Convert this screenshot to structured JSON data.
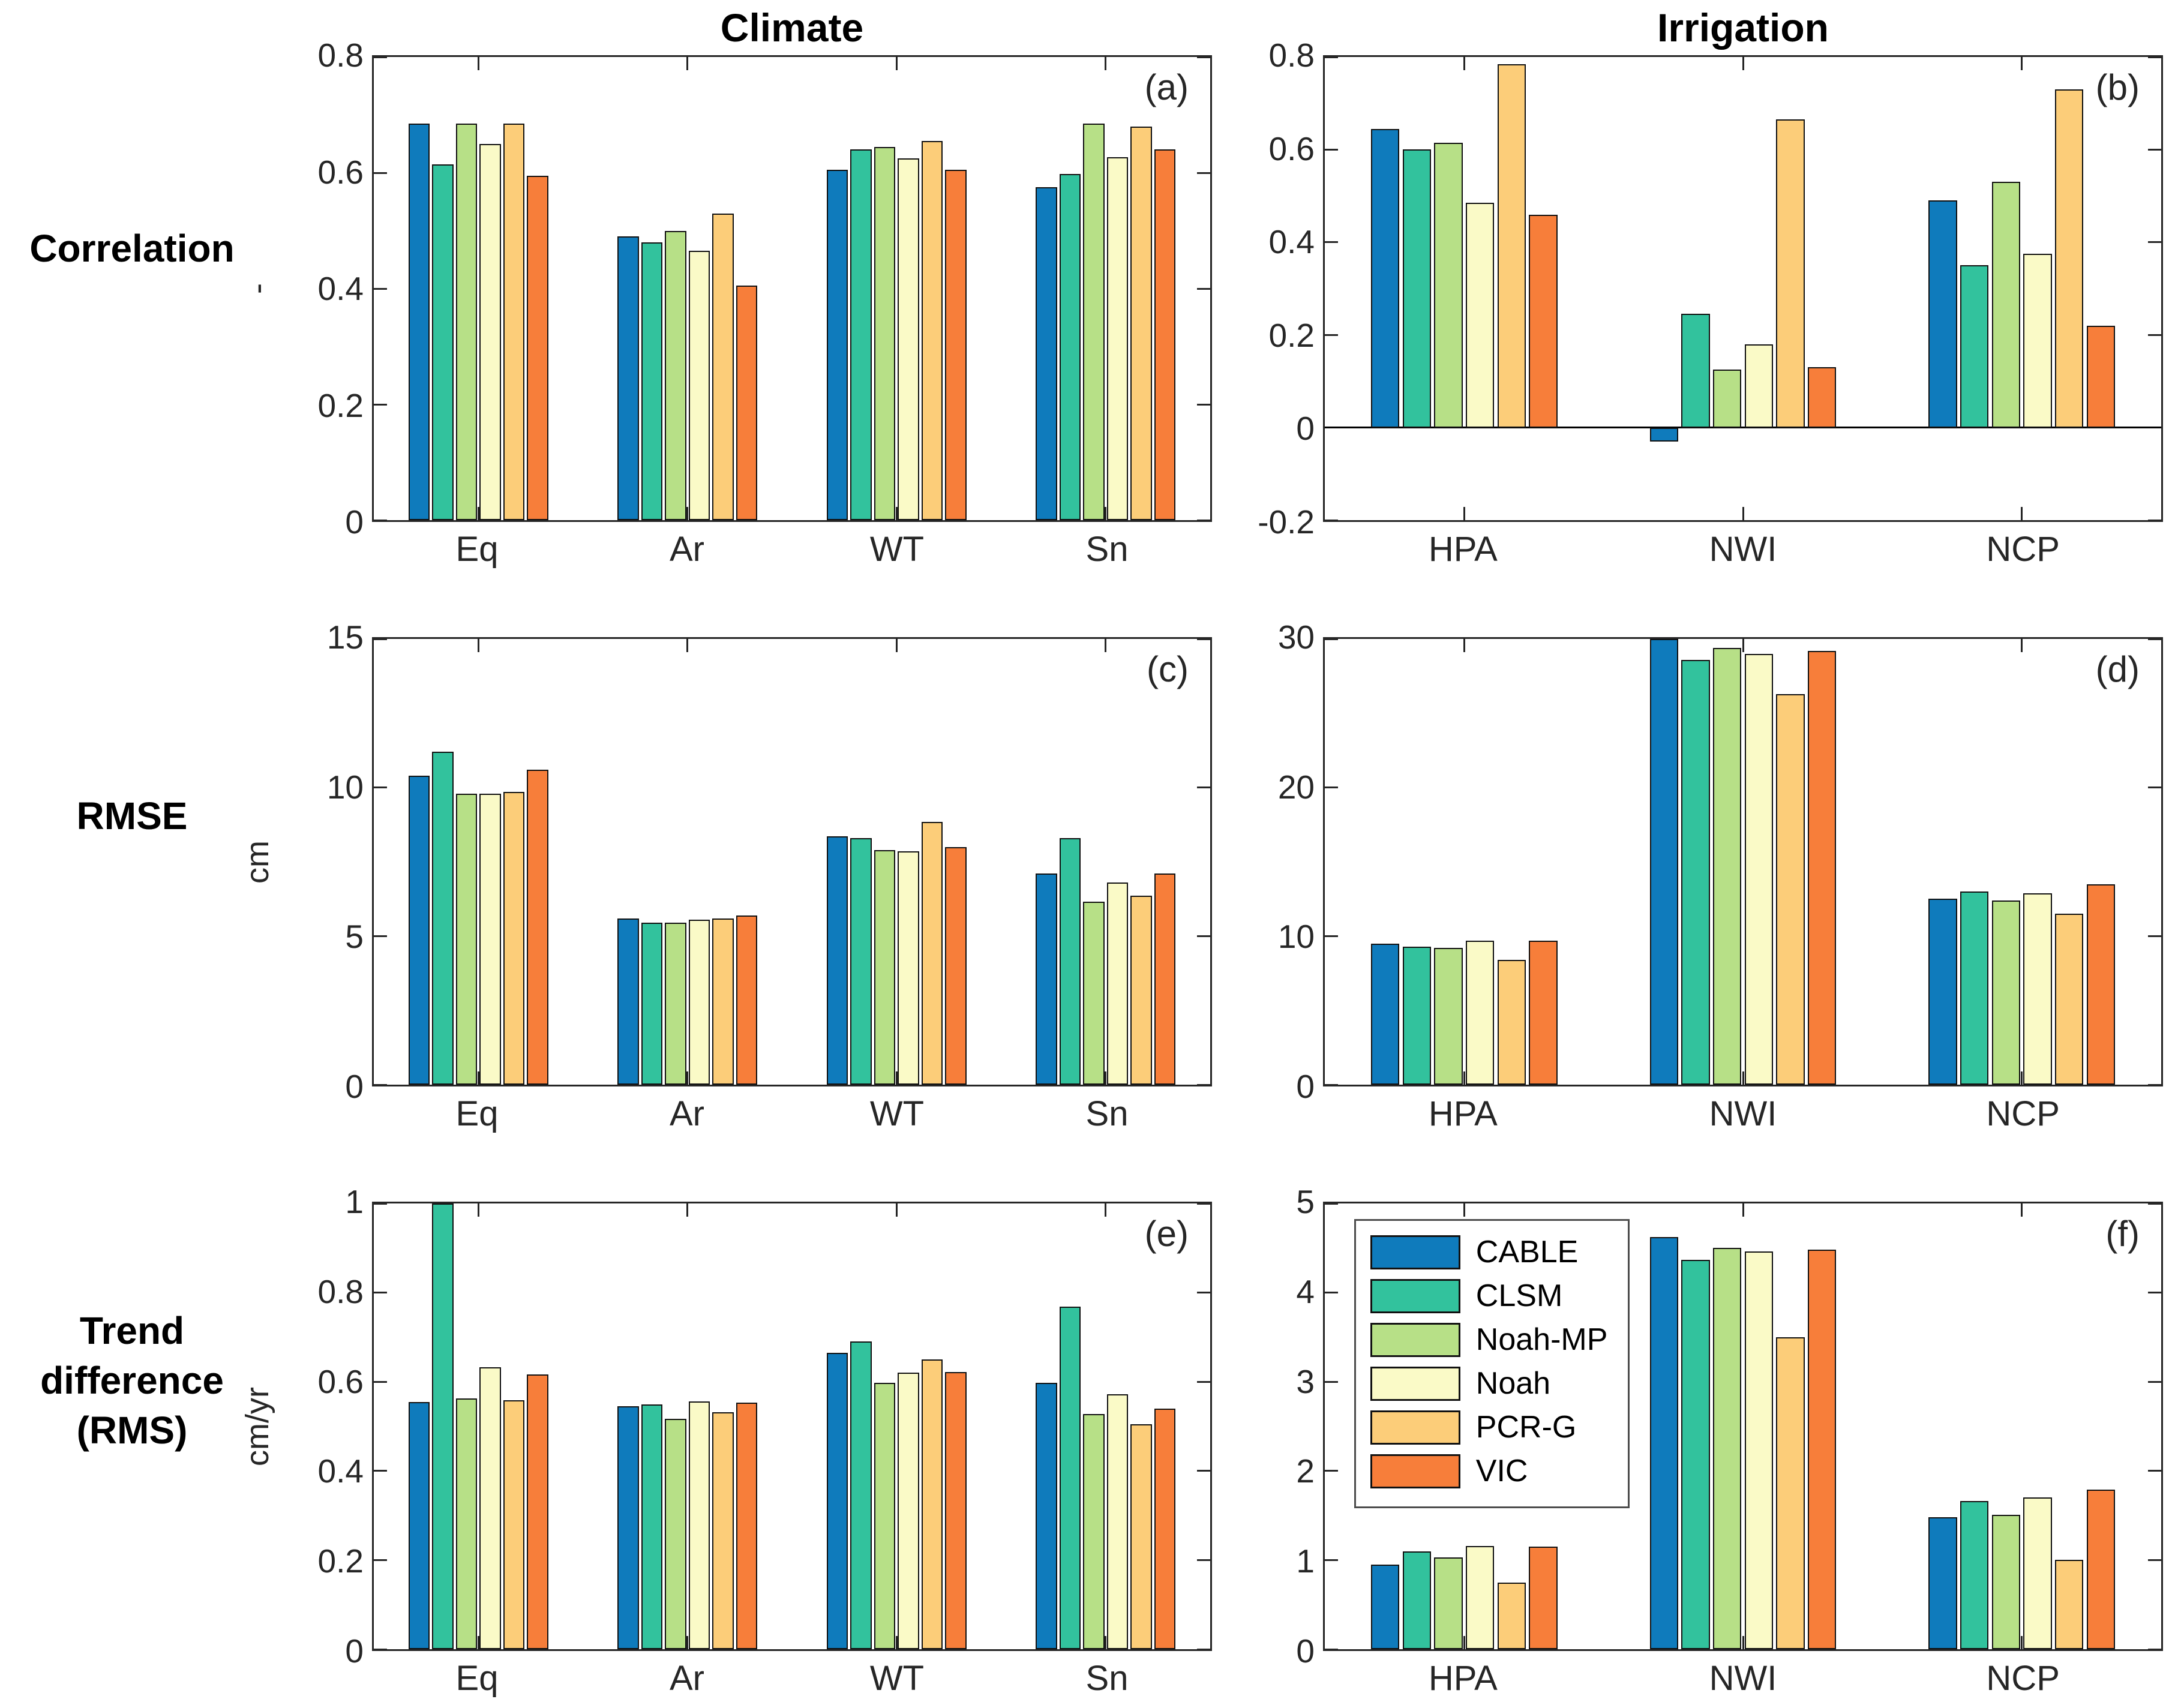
{
  "figure": {
    "row_labels": [
      "Correlation",
      "RMSE",
      "Trend\ndifference\n(RMS)"
    ]
  },
  "series": [
    {
      "name": "CABLE",
      "color": "#0F7BBC"
    },
    {
      "name": "CLSM",
      "color": "#32C29D"
    },
    {
      "name": "Noah-MP",
      "color": "#B7E087"
    },
    {
      "name": "Noah",
      "color": "#FAFAC7"
    },
    {
      "name": "PCR-G",
      "color": "#FCCD79"
    },
    {
      "name": "VIC",
      "color": "#F77E3A"
    }
  ],
  "chart_data": [
    {
      "type": "bar",
      "id": "a",
      "letter": "(a)",
      "title": "Climate",
      "ylabel": "-",
      "ylim": [
        0,
        0.8
      ],
      "yticks": [
        0,
        0.2,
        0.4,
        0.6,
        0.8
      ],
      "categories": [
        "Eq",
        "Ar",
        "WT",
        "Sn"
      ],
      "series": [
        {
          "name": "CABLE",
          "values": [
            0.685,
            0.49,
            0.605,
            0.575
          ]
        },
        {
          "name": "CLSM",
          "values": [
            0.615,
            0.48,
            0.64,
            0.598
          ]
        },
        {
          "name": "Noah-MP",
          "values": [
            0.685,
            0.5,
            0.645,
            0.685
          ]
        },
        {
          "name": "Noah",
          "values": [
            0.65,
            0.465,
            0.625,
            0.627
          ]
        },
        {
          "name": "PCR-G",
          "values": [
            0.685,
            0.53,
            0.655,
            0.68
          ]
        },
        {
          "name": "VIC",
          "values": [
            0.595,
            0.405,
            0.605,
            0.64
          ]
        }
      ]
    },
    {
      "type": "bar",
      "id": "b",
      "letter": "(b)",
      "title": "Irrigation",
      "ylabel": "",
      "ylim": [
        -0.2,
        0.8
      ],
      "yticks": [
        -0.2,
        0,
        0.2,
        0.4,
        0.6,
        0.8
      ],
      "categories": [
        "HPA",
        "NWI",
        "NCP"
      ],
      "series": [
        {
          "name": "CABLE",
          "values": [
            0.645,
            -0.03,
            0.49
          ]
        },
        {
          "name": "CLSM",
          "values": [
            0.6,
            0.245,
            0.35
          ]
        },
        {
          "name": "Noah-MP",
          "values": [
            0.615,
            0.125,
            0.53
          ]
        },
        {
          "name": "Noah",
          "values": [
            0.485,
            0.18,
            0.375
          ]
        },
        {
          "name": "PCR-G",
          "values": [
            0.785,
            0.665,
            0.73
          ]
        },
        {
          "name": "VIC",
          "values": [
            0.46,
            0.13,
            0.22
          ]
        }
      ]
    },
    {
      "type": "bar",
      "id": "c",
      "letter": "(c)",
      "title": "",
      "ylabel": "cm",
      "ylim": [
        0,
        15
      ],
      "yticks": [
        0,
        5,
        10,
        15
      ],
      "categories": [
        "Eq",
        "Ar",
        "WT",
        "Sn"
      ],
      "series": [
        {
          "name": "CABLE",
          "values": [
            10.4,
            5.6,
            8.35,
            7.1
          ]
        },
        {
          "name": "CLSM",
          "values": [
            11.2,
            5.45,
            8.3,
            8.3
          ]
        },
        {
          "name": "Noah-MP",
          "values": [
            9.8,
            5.45,
            7.9,
            6.15
          ]
        },
        {
          "name": "Noah",
          "values": [
            9.8,
            5.55,
            7.85,
            6.8
          ]
        },
        {
          "name": "PCR-G",
          "values": [
            9.85,
            5.6,
            8.85,
            6.35
          ]
        },
        {
          "name": "VIC",
          "values": [
            10.6,
            5.7,
            8.0,
            7.1
          ]
        }
      ]
    },
    {
      "type": "bar",
      "id": "d",
      "letter": "(d)",
      "title": "",
      "ylabel": "",
      "ylim": [
        0,
        30
      ],
      "yticks": [
        0,
        10,
        20,
        30
      ],
      "categories": [
        "HPA",
        "NWI",
        "NCP"
      ],
      "series": [
        {
          "name": "CABLE",
          "values": [
            9.5,
            30.0,
            12.5
          ]
        },
        {
          "name": "CLSM",
          "values": [
            9.3,
            28.6,
            13.0
          ]
        },
        {
          "name": "Noah-MP",
          "values": [
            9.2,
            29.4,
            12.4
          ]
        },
        {
          "name": "Noah",
          "values": [
            9.7,
            29.0,
            12.9
          ]
        },
        {
          "name": "PCR-G",
          "values": [
            8.4,
            26.3,
            11.5
          ]
        },
        {
          "name": "VIC",
          "values": [
            9.7,
            29.2,
            13.5
          ]
        }
      ]
    },
    {
      "type": "bar",
      "id": "e",
      "letter": "(e)",
      "title": "",
      "ylabel": "cm/yr",
      "ylim": [
        0,
        1
      ],
      "yticks": [
        0,
        0.2,
        0.4,
        0.6,
        0.8,
        1
      ],
      "categories": [
        "Eq",
        "Ar",
        "WT",
        "Sn"
      ],
      "series": [
        {
          "name": "CABLE",
          "values": [
            0.555,
            0.545,
            0.665,
            0.598
          ]
        },
        {
          "name": "CLSM",
          "values": [
            1.0,
            0.549,
            0.69,
            0.768
          ]
        },
        {
          "name": "Noah-MP",
          "values": [
            0.563,
            0.517,
            0.598,
            0.527
          ]
        },
        {
          "name": "Noah",
          "values": [
            0.633,
            0.556,
            0.62,
            0.572
          ]
        },
        {
          "name": "PCR-G",
          "values": [
            0.558,
            0.532,
            0.65,
            0.505
          ]
        },
        {
          "name": "VIC",
          "values": [
            0.617,
            0.553,
            0.622,
            0.54
          ]
        }
      ]
    },
    {
      "type": "bar",
      "id": "f",
      "letter": "(f)",
      "title": "",
      "ylabel": "",
      "ylim": [
        0,
        5
      ],
      "yticks": [
        0,
        1,
        2,
        3,
        4,
        5
      ],
      "categories": [
        "HPA",
        "NWI",
        "NCP"
      ],
      "legend": true,
      "legend_position": "top-left",
      "series": [
        {
          "name": "CABLE",
          "values": [
            0.95,
            4.62,
            1.48
          ]
        },
        {
          "name": "CLSM",
          "values": [
            1.1,
            4.37,
            1.66
          ]
        },
        {
          "name": "Noah-MP",
          "values": [
            1.03,
            4.5,
            1.51
          ]
        },
        {
          "name": "Noah",
          "values": [
            1.16,
            4.46,
            1.7
          ]
        },
        {
          "name": "PCR-G",
          "values": [
            0.75,
            3.5,
            1.0
          ]
        },
        {
          "name": "VIC",
          "values": [
            1.15,
            4.48,
            1.79
          ]
        }
      ]
    }
  ]
}
